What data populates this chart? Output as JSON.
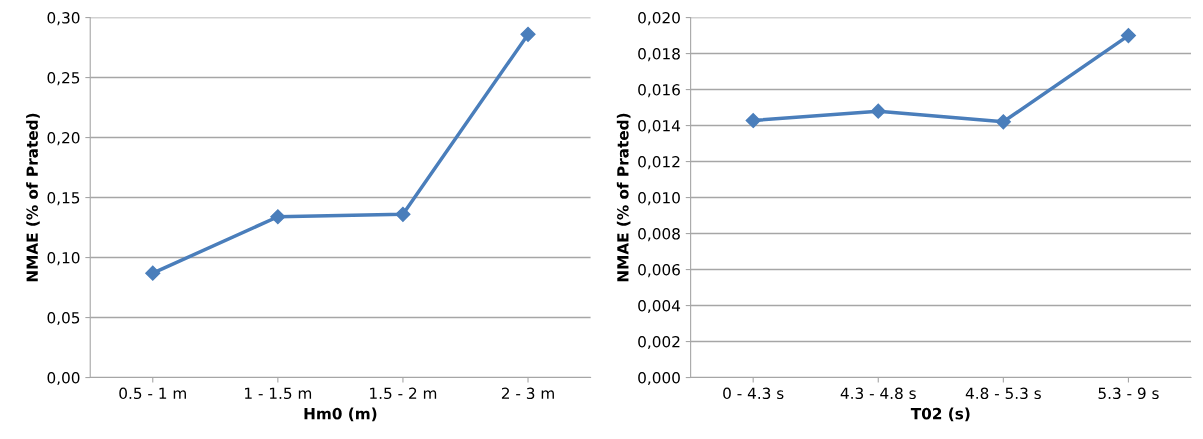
{
  "chart_data": [
    {
      "type": "line",
      "xlabel": "Hm0 (m)",
      "ylabel": "NMAE (% of Prated)",
      "categories": [
        "0.5 - 1 m",
        "1 - 1.5 m",
        "1.5 - 2 m",
        "2 - 3 m"
      ],
      "series": [
        {
          "color": "#4a7ebb",
          "values": [
            0.087,
            0.134,
            0.136,
            0.286
          ]
        }
      ],
      "ylim": [
        0,
        0.3
      ],
      "yticks": [
        {
          "value": 0,
          "label": "0,00"
        },
        {
          "value": 0.05,
          "label": "0,05"
        },
        {
          "value": 0.1,
          "label": "0,10"
        },
        {
          "value": 0.15,
          "label": "0,15"
        },
        {
          "value": 0.2,
          "label": "0,20"
        },
        {
          "value": 0.25,
          "label": "0,25"
        },
        {
          "value": 0.3,
          "label": "0,30"
        }
      ],
      "grid": "y",
      "marker": "diamond",
      "line_style": "solid"
    },
    {
      "type": "line",
      "xlabel": "T02 (s)",
      "ylabel": "NMAE (% of Prated)",
      "categories": [
        "0 - 4.3 s",
        "4.3 - 4.8 s",
        "4.8 - 5.3 s",
        "5.3 - 9 s"
      ],
      "series": [
        {
          "color": "#4a7ebb",
          "values": [
            0.01428,
            0.0148,
            0.01421,
            0.019
          ]
        }
      ],
      "ylim": [
        0,
        0.02
      ],
      "yticks": [
        {
          "value": 0,
          "label": "0,000"
        },
        {
          "value": 0.002,
          "label": "0,002"
        },
        {
          "value": 0.004,
          "label": "0,004"
        },
        {
          "value": 0.006,
          "label": "0,006"
        },
        {
          "value": 0.008,
          "label": "0,008"
        },
        {
          "value": 0.01,
          "label": "0,010"
        },
        {
          "value": 0.012,
          "label": "0,012"
        },
        {
          "value": 0.014,
          "label": "0,014"
        },
        {
          "value": 0.016,
          "label": "0,016"
        },
        {
          "value": 0.018,
          "label": "0,018"
        },
        {
          "value": 0.02,
          "label": "0,020"
        }
      ],
      "grid": "y",
      "marker": "diamond",
      "line_style": "solid"
    }
  ]
}
